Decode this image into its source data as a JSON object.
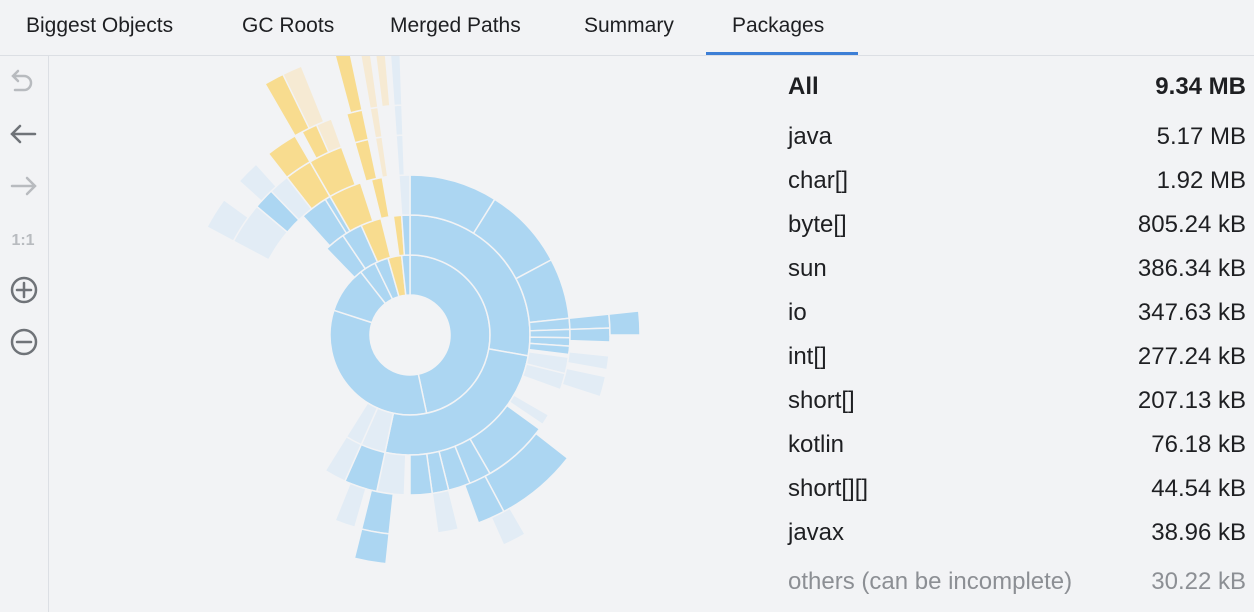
{
  "tabs": [
    "Biggest Objects",
    "GC Roots",
    "Merged Paths",
    "Summary",
    "Packages"
  ],
  "summary": {
    "label": "All",
    "size": "9.34 MB"
  },
  "packages": [
    {
      "name": "java",
      "size": "5.17 MB"
    },
    {
      "name": "char[]",
      "size": "1.92 MB"
    },
    {
      "name": "byte[]",
      "size": "805.24 kB"
    },
    {
      "name": "sun",
      "size": "386.34 kB"
    },
    {
      "name": "io",
      "size": "347.63 kB"
    },
    {
      "name": "int[]",
      "size": "277.24 kB"
    },
    {
      "name": "short[]",
      "size": "207.13 kB"
    },
    {
      "name": "kotlin",
      "size": "76.18 kB"
    },
    {
      "name": "short[][]",
      "size": "44.54 kB"
    },
    {
      "name": "javax",
      "size": "38.96 kB"
    }
  ],
  "others": {
    "label": "others (can be incomplete)",
    "size": "30.22 kB"
  }
}
